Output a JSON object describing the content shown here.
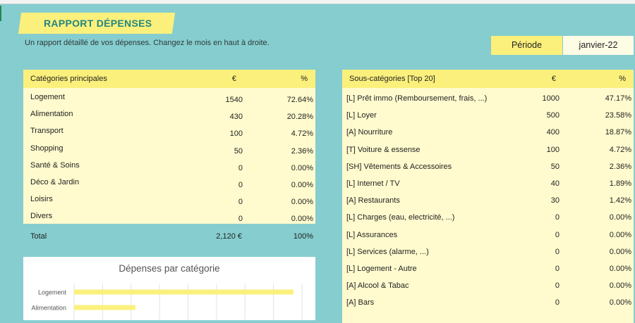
{
  "report": {
    "title": "RAPPORT DÉPENSES",
    "subtitle": "Un rapport détaillé de vos dépenses. Changez le mois en haut à droite.",
    "period_label": "Période",
    "period_value": "janvier-22"
  },
  "main_table": {
    "headers": [
      "Catégories principales",
      "€",
      "%"
    ],
    "rows": [
      {
        "name": "Logement",
        "amount": "1540",
        "pct": "72.64%"
      },
      {
        "name": "Alimentation",
        "amount": "430",
        "pct": "20.28%"
      },
      {
        "name": "Transport",
        "amount": "100",
        "pct": "4.72%"
      },
      {
        "name": "Shopping",
        "amount": "50",
        "pct": "2.36%"
      },
      {
        "name": "Santé & Soins",
        "amount": "0",
        "pct": "0.00%"
      },
      {
        "name": "Déco & Jardin",
        "amount": "0",
        "pct": "0.00%"
      },
      {
        "name": "Loisirs",
        "amount": "0",
        "pct": "0.00%"
      },
      {
        "name": "Divers",
        "amount": "0",
        "pct": "0.00%"
      }
    ],
    "total": {
      "label": "Total",
      "amount": "2,120 €",
      "pct": "100%"
    }
  },
  "sub_table": {
    "headers": [
      "Sous-catégories [Top 20]",
      "€",
      "%"
    ],
    "rows": [
      {
        "name": "[L] Prêt immo (Remboursement, frais, ...)",
        "amount": "1000",
        "pct": "47.17%"
      },
      {
        "name": "[L] Loyer",
        "amount": "500",
        "pct": "23.58%"
      },
      {
        "name": "[A] Nourriture",
        "amount": "400",
        "pct": "18.87%"
      },
      {
        "name": "[T] Voiture & essense",
        "amount": "100",
        "pct": "4.72%"
      },
      {
        "name": "[SH] Vêtements & Accessoires",
        "amount": "50",
        "pct": "2.36%"
      },
      {
        "name": "[L] Internet / TV",
        "amount": "40",
        "pct": "1.89%"
      },
      {
        "name": "[A] Restaurants",
        "amount": "30",
        "pct": "1.42%"
      },
      {
        "name": "[L] Charges (eau, electricité, ...)",
        "amount": "0",
        "pct": "0.00%"
      },
      {
        "name": "[L] Assurances",
        "amount": "0",
        "pct": "0.00%"
      },
      {
        "name": "[L] Services (alarme, ...)",
        "amount": "0",
        "pct": "0.00%"
      },
      {
        "name": "[L] Logement - Autre",
        "amount": "0",
        "pct": "0.00%"
      },
      {
        "name": "[A] Alcool & Tabac",
        "amount": "0",
        "pct": "0.00%"
      },
      {
        "name": "[A] Bars",
        "amount": "0",
        "pct": "0.00%"
      }
    ]
  },
  "chart_data": {
    "type": "bar",
    "orientation": "horizontal",
    "title": "Dépenses par catégorie",
    "categories": [
      "Logement",
      "Alimentation"
    ],
    "values": [
      1540,
      430
    ],
    "xlim": [
      0,
      1600
    ],
    "grid": true,
    "color": "#FBF07C"
  }
}
